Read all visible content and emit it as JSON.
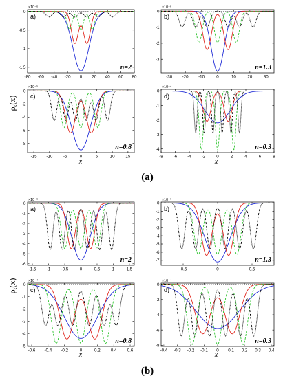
{
  "figure": {
    "group_labels": [
      "(a)",
      "(b)"
    ],
    "ylabel_main": "ρ",
    "ylabel_sub": "s",
    "ylabel_arg": "(x)",
    "xlabel": "x"
  },
  "colors": {
    "blue": "#1f2bd6",
    "red": "#e0251c",
    "green": "#2ec42e",
    "black": "#000000",
    "dash": "#555555"
  },
  "chart_data": [
    {
      "type": "line",
      "group": "a",
      "tag": "a)",
      "n_label": "n=2",
      "exponent": "×10⁻⁶",
      "xlim": [
        -80,
        80
      ],
      "ylim": [
        -1.65,
        0.05
      ],
      "xticks": [
        -80,
        -60,
        -40,
        -20,
        0,
        20,
        40,
        60,
        80
      ],
      "xticklabels": [
        "-80",
        "-60",
        "-40",
        "-20",
        "0",
        "20",
        "40",
        "60",
        "80"
      ],
      "yticks": [
        0,
        -0.5,
        -1,
        -1.5
      ],
      "yticklabels": [
        "0",
        "-0.5",
        "-1",
        "-1.5"
      ],
      "series": [
        {
          "color": "blue",
          "dash": "",
          "amp": 1.6,
          "sigma": 12,
          "shift": 0,
          "centers": [
            0
          ]
        },
        {
          "color": "red",
          "dash": "",
          "amp": 0.86,
          "sigma": 5.2,
          "shift": 0,
          "centers": [
            -9,
            9
          ]
        },
        {
          "color": "green",
          "dash": "3,2",
          "amp": 0.48,
          "sigma": 3.8,
          "shift": 0,
          "centers": [
            -17,
            0,
            17
          ]
        },
        {
          "color": "black",
          "dash": "1,1",
          "amp": 0.15,
          "sigma": 4.5,
          "shift": 0,
          "centers": [
            -48,
            -26,
            -9,
            9,
            26,
            48
          ]
        }
      ]
    },
    {
      "type": "line",
      "group": "a",
      "tag": "b)",
      "n_label": "n=1.3",
      "exponent": "×10⁻⁶",
      "xlim": [
        -35,
        35
      ],
      "ylim": [
        -3.85,
        0.1
      ],
      "xticks": [
        -30,
        -20,
        -10,
        0,
        10,
        20,
        30
      ],
      "xticklabels": [
        "-30",
        "-20",
        "-10",
        "0",
        "10",
        "20",
        "30"
      ],
      "yticks": [
        0,
        -1,
        -2,
        -3
      ],
      "yticklabels": [
        "0",
        "-1",
        "-2",
        "-3"
      ],
      "series": [
        {
          "color": "blue",
          "dash": "",
          "amp": 3.75,
          "sigma": 4.0,
          "shift": 0,
          "centers": [
            0
          ]
        },
        {
          "color": "red",
          "dash": "",
          "amp": 2.4,
          "sigma": 2.6,
          "shift": 0,
          "centers": [
            -6.5,
            6.5
          ]
        },
        {
          "color": "green",
          "dash": "3,2",
          "amp": 1.95,
          "sigma": 2.0,
          "shift": 0,
          "centers": [
            -11.5,
            0,
            11.5
          ]
        },
        {
          "color": "black",
          "dash": "1,1",
          "amp": 1.0,
          "sigma": 1.8,
          "shift": 0,
          "centers": [
            -22,
            -13.5,
            -6.5,
            6.5,
            13.5,
            22
          ]
        }
      ]
    },
    {
      "type": "line",
      "group": "a",
      "tag": "c)",
      "n_label": "n=0.8",
      "exponent": "×10⁻⁵",
      "xlim": [
        -17,
        17
      ],
      "ylim": [
        -9.4,
        0.25
      ],
      "xticks": [
        -15,
        -10,
        -5,
        0,
        5,
        10,
        15
      ],
      "xticklabels": [
        "-15",
        "-10",
        "-5",
        "0",
        "5",
        "10",
        "15"
      ],
      "yticks": [
        0,
        -2,
        -4,
        -6,
        -8
      ],
      "yticklabels": [
        "0",
        "-2",
        "-4",
        "-6",
        "-8"
      ],
      "series": [
        {
          "color": "blue",
          "dash": "",
          "amp": 9.0,
          "sigma": 3.0,
          "shift": 0,
          "centers": [
            0
          ]
        },
        {
          "color": "red",
          "dash": "",
          "amp": 6.4,
          "sigma": 1.6,
          "shift": 0,
          "centers": [
            -3.3,
            3.3
          ]
        },
        {
          "color": "green",
          "dash": "3,2",
          "amp": 5.6,
          "sigma": 1.0,
          "shift": 0,
          "centers": [
            -5.4,
            0,
            5.4
          ]
        },
        {
          "color": "black",
          "dash": "1,1",
          "amp": 4.5,
          "sigma": 0.85,
          "shift": 0,
          "centers": [
            -8.5,
            -4.8,
            -1.7,
            1.7,
            4.8,
            8.5
          ]
        }
      ]
    },
    {
      "type": "line",
      "group": "a",
      "tag": "d)",
      "n_label": "n=0.3",
      "exponent": "×10⁻⁴",
      "xlim": [
        -8,
        8
      ],
      "ylim": [
        -4.25,
        0.12
      ],
      "xticks": [
        -8,
        -6,
        -4,
        -2,
        0,
        2,
        4,
        6,
        8
      ],
      "xticklabels": [
        "-8",
        "-6",
        "-4",
        "-2",
        "0",
        "2",
        "4",
        "6",
        "8"
      ],
      "yticks": [
        0,
        -1,
        -2,
        -3,
        -4
      ],
      "yticklabels": [
        "0",
        "-1",
        "-2",
        "-3",
        "-4"
      ],
      "series": [
        {
          "color": "blue",
          "dash": "",
          "amp": 2.2,
          "sigma": 1.8,
          "shift": 0,
          "centers": [
            0
          ]
        },
        {
          "color": "red",
          "dash": "",
          "amp": 2.1,
          "sigma": 0.55,
          "shift": 0,
          "centers": [
            -1.5,
            1.5
          ]
        },
        {
          "color": "green",
          "dash": "3,2",
          "amp": 4.05,
          "sigma": 0.3,
          "shift": 0,
          "centers": [
            -2.3,
            0,
            2.3
          ]
        },
        {
          "color": "black",
          "dash": "1,1",
          "amp": 2.9,
          "sigma": 0.2,
          "shift": 0,
          "centers": [
            -3.1,
            -1.9,
            -0.65,
            0.65,
            1.9,
            3.1
          ]
        }
      ]
    },
    {
      "type": "line",
      "group": "b",
      "tag": "a)",
      "n_label": "n=2",
      "exponent": "×10⁻⁶",
      "xlim": [
        -1.65,
        1.65
      ],
      "ylim": [
        -6.15,
        0.12
      ],
      "xticks": [
        -1.5,
        -1,
        -0.5,
        0,
        0.5,
        1,
        1.5
      ],
      "xticklabels": [
        "-1.5",
        "-1",
        "-0.5",
        "0",
        "0.5",
        "1",
        "1.5"
      ],
      "yticks": [
        0,
        -1,
        -2,
        -3,
        -4,
        -5,
        -6
      ],
      "yticklabels": [
        "0",
        "-1",
        "-2",
        "-3",
        "-4",
        "-5",
        "-6"
      ],
      "series": [
        {
          "color": "blue",
          "dash": "",
          "amp": 5.65,
          "sigma": 0.28,
          "shift": 0,
          "centers": [
            0
          ]
        },
        {
          "color": "red",
          "dash": "",
          "amp": 4.5,
          "sigma": 0.13,
          "shift": 0,
          "centers": [
            -0.3,
            0.3
          ]
        },
        {
          "color": "green",
          "dash": "3,2",
          "amp": 4.5,
          "sigma": 0.11,
          "shift": 0.3,
          "centers": [
            -0.5,
            0,
            0.5
          ]
        },
        {
          "color": "black",
          "dash": "1,1",
          "amp": 4.6,
          "sigma": 0.085,
          "shift": 0,
          "centers": [
            -0.95,
            -0.58,
            -0.2,
            0.2,
            0.58,
            0.95
          ]
        }
      ]
    },
    {
      "type": "line",
      "group": "b",
      "tag": "b)",
      "n_label": "n=1.3",
      "exponent": "×10⁻⁶",
      "xlim": [
        -0.82,
        0.82
      ],
      "ylim": [
        -7.6,
        0.12
      ],
      "xticks": [
        -0.5,
        0,
        0.5
      ],
      "xticklabels": [
        "-0.5",
        "0",
        "0.5"
      ],
      "yticks": [
        0,
        -1,
        -2,
        -3,
        -4,
        -5,
        -6,
        -7
      ],
      "yticklabels": [
        "0",
        "-1",
        "-2",
        "-3",
        "-4",
        "-5",
        "-6",
        "-7"
      ],
      "series": [
        {
          "color": "blue",
          "dash": "",
          "amp": 7.2,
          "sigma": 0.18,
          "shift": 0,
          "centers": [
            0
          ]
        },
        {
          "color": "red",
          "dash": "",
          "amp": 6.4,
          "sigma": 0.075,
          "shift": 0,
          "centers": [
            -0.16,
            0.16
          ]
        },
        {
          "color": "green",
          "dash": "3,2",
          "amp": 6.3,
          "sigma": 0.06,
          "shift": 0.7,
          "centers": [
            -0.28,
            0,
            0.28
          ]
        },
        {
          "color": "black",
          "dash": "1,1",
          "amp": 5.6,
          "sigma": 0.045,
          "shift": 0,
          "centers": [
            -0.52,
            -0.32,
            -0.11,
            0.11,
            0.32,
            0.52
          ]
        }
      ]
    },
    {
      "type": "line",
      "group": "b",
      "tag": "c)",
      "n_label": "n=0.8",
      "exponent": "×10⁻⁴",
      "xlim": [
        -0.65,
        0.65
      ],
      "ylim": [
        -5.05,
        0.1
      ],
      "xticks": [
        -0.6,
        -0.4,
        -0.2,
        0,
        0.2,
        0.4,
        0.6
      ],
      "xticklabels": [
        "-0.6",
        "-0.4",
        "-0.2",
        "0",
        "0.2",
        "0.4",
        "0.6"
      ],
      "yticks": [
        0,
        -1,
        -2,
        -3,
        -4,
        -5
      ],
      "yticklabels": [
        "0",
        "-1",
        "-2",
        "-3",
        "-4",
        "-5"
      ],
      "series": [
        {
          "color": "blue",
          "dash": "",
          "amp": 4.4,
          "sigma": 0.2,
          "shift": 0,
          "centers": [
            0
          ]
        },
        {
          "color": "red",
          "dash": "",
          "amp": 4.45,
          "sigma": 0.085,
          "shift": 0,
          "centers": [
            -0.17,
            0.17
          ]
        },
        {
          "color": "green",
          "dash": "3,2",
          "amp": 4.8,
          "sigma": 0.06,
          "shift": 0.4,
          "centers": [
            -0.3,
            0,
            0.3
          ]
        },
        {
          "color": "black",
          "dash": "1,1",
          "amp": 3.35,
          "sigma": 0.045,
          "shift": 0,
          "centers": [
            -0.43,
            -0.28,
            -0.1,
            0.1,
            0.28,
            0.43
          ]
        }
      ]
    },
    {
      "type": "line",
      "group": "b",
      "tag": "d)",
      "n_label": "n=0.3",
      "exponent": "×10⁻⁴",
      "xlim": [
        -0.42,
        0.42
      ],
      "ylim": [
        -8.15,
        0.15
      ],
      "xticks": [
        -0.4,
        -0.3,
        -0.2,
        -0.1,
        0,
        0.1,
        0.2,
        0.3,
        0.4
      ],
      "xticklabels": [
        "-0.4",
        "-0.3",
        "-0.2",
        "-0.1",
        "0",
        "0.1",
        "0.2",
        "0.3",
        "0.4"
      ],
      "yticks": [
        0,
        -2,
        -4,
        -6,
        -8
      ],
      "yticklabels": [
        "0",
        "-2",
        "-4",
        "-6",
        "-8"
      ],
      "series": [
        {
          "color": "blue",
          "dash": "",
          "amp": 5.8,
          "sigma": 0.16,
          "shift": 0,
          "centers": [
            0
          ]
        },
        {
          "color": "red",
          "dash": "",
          "amp": 6.5,
          "sigma": 0.055,
          "shift": 0,
          "centers": [
            -0.11,
            0.11
          ]
        },
        {
          "color": "green",
          "dash": "3,2",
          "amp": 7.9,
          "sigma": 0.035,
          "shift": 0.5,
          "centers": [
            -0.19,
            0,
            0.19
          ]
        },
        {
          "color": "black",
          "dash": "1,1",
          "amp": 6.8,
          "sigma": 0.025,
          "shift": 0,
          "centers": [
            -0.27,
            -0.17,
            -0.06,
            0.06,
            0.17,
            0.27
          ]
        }
      ]
    }
  ]
}
